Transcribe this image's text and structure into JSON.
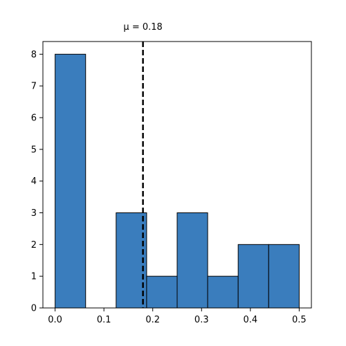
{
  "chart_data": {
    "type": "bar",
    "title": "",
    "xlabel": "",
    "ylabel": "",
    "bins": [
      {
        "x0": 0.0,
        "x1": 0.0625,
        "count": 8
      },
      {
        "x0": 0.0625,
        "x1": 0.125,
        "count": 0
      },
      {
        "x0": 0.125,
        "x1": 0.1875,
        "count": 3
      },
      {
        "x0": 0.1875,
        "x1": 0.25,
        "count": 1
      },
      {
        "x0": 0.25,
        "x1": 0.3125,
        "count": 3
      },
      {
        "x0": 0.3125,
        "x1": 0.375,
        "count": 1
      },
      {
        "x0": 0.375,
        "x1": 0.4375,
        "count": 2
      },
      {
        "x0": 0.4375,
        "x1": 0.5,
        "count": 2
      }
    ],
    "xlim": [
      -0.025,
      0.525
    ],
    "ylim": [
      0,
      8.4
    ],
    "xticks": [
      0.0,
      0.1,
      0.2,
      0.3,
      0.4,
      0.5
    ],
    "xtick_labels": [
      "0.0",
      "0.1",
      "0.2",
      "0.3",
      "0.4",
      "0.5"
    ],
    "yticks": [
      0,
      1,
      2,
      3,
      4,
      5,
      6,
      7,
      8
    ],
    "ytick_labels": [
      "0",
      "1",
      "2",
      "3",
      "4",
      "5",
      "6",
      "7",
      "8"
    ],
    "mean": 0.18,
    "mean_label": "μ = 0.18",
    "bar_color": "#3a7dbd",
    "edge_color": "#000000",
    "mean_line_color": "#000000",
    "grid": false,
    "legend": "none"
  }
}
